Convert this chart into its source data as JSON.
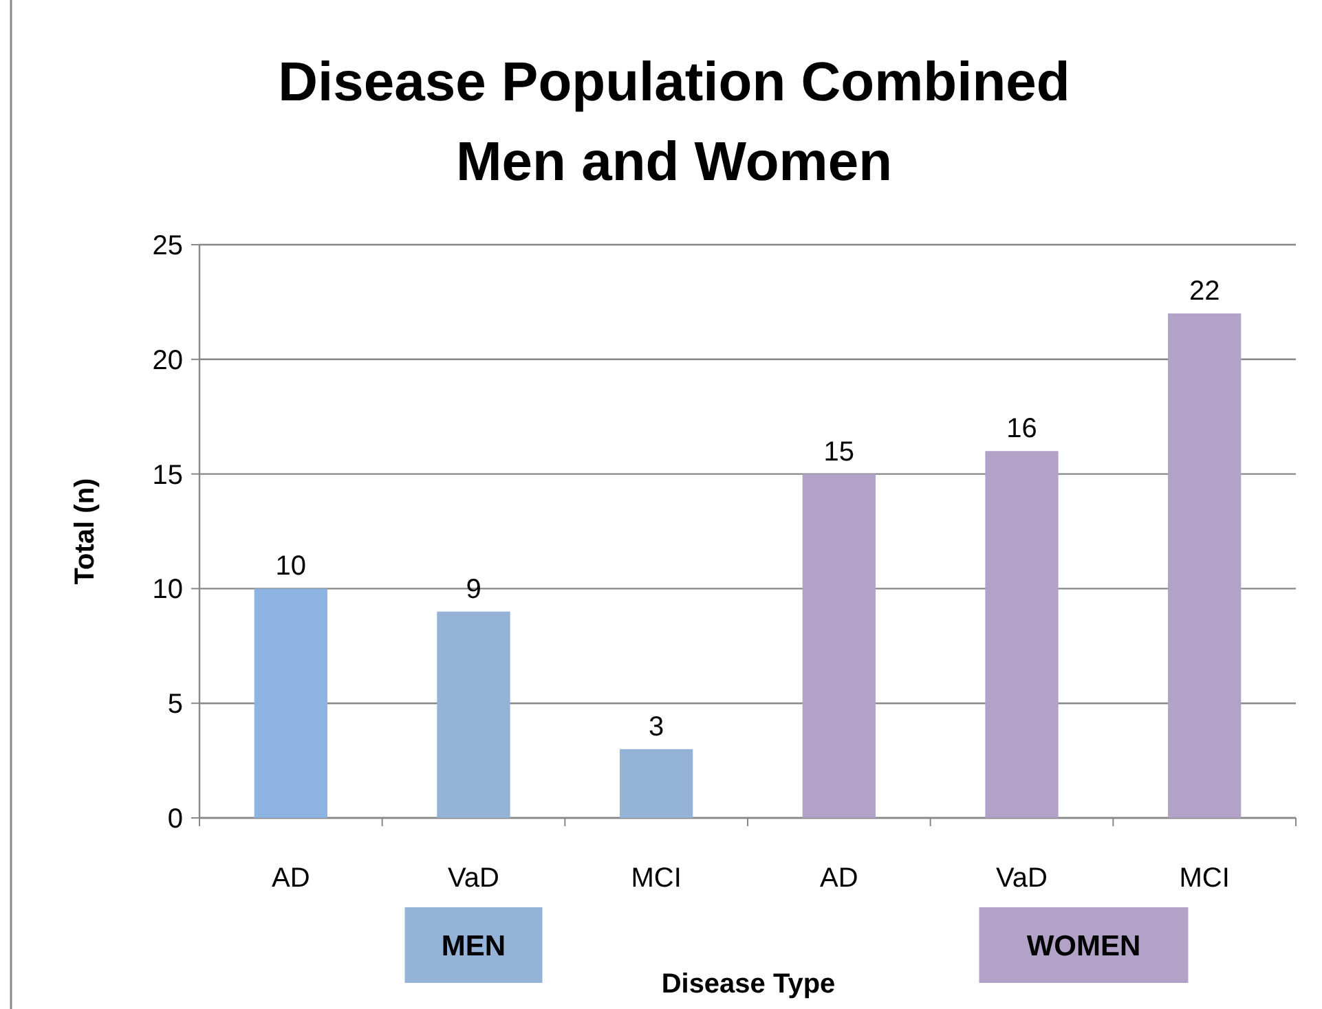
{
  "chart_data": {
    "type": "bar",
    "title": "Disease Population Combined\nMen and Women",
    "xlabel": "Disease Type",
    "ylabel": "Total (n)",
    "categories": [
      "AD",
      "VaD",
      "MCI",
      "AD",
      "VaD",
      "MCI"
    ],
    "series": [
      {
        "name": "MEN",
        "color": "#95b3d7",
        "colors": [
          "#8db3e2",
          "#95b3d7",
          "#95b3d7",
          null,
          null,
          null
        ],
        "values": [
          10,
          9,
          3,
          null,
          null,
          null
        ]
      },
      {
        "name": "WOMEN",
        "color": "#b2a2c7",
        "values": [
          null,
          null,
          null,
          15,
          16,
          22
        ]
      }
    ],
    "ylim": [
      0,
      25
    ],
    "yticks": [
      0,
      5,
      10,
      15,
      20,
      25
    ],
    "grid": "y",
    "data_labels": true,
    "legend": "bottom"
  }
}
